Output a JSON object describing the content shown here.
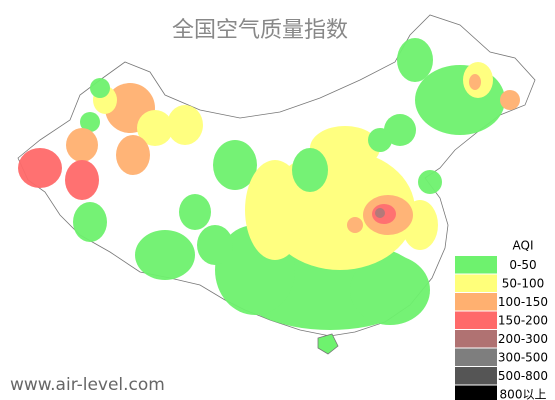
{
  "title": "全国空气质量指数",
  "watermark": "www.air-level.com",
  "legend": {
    "title": "AQI",
    "items": [
      {
        "label": "0-50",
        "color": "#6ef26e"
      },
      {
        "label": "50-100",
        "color": "#ffff7a"
      },
      {
        "label": "100-150",
        "color": "#ffb070"
      },
      {
        "label": "150-200",
        "color": "#ff6a6a"
      },
      {
        "label": "200-300",
        "color": "#b07272"
      },
      {
        "label": "300-500",
        "color": "#7e7e7e"
      },
      {
        "label": "500-800",
        "color": "#555555"
      },
      {
        "label": "800以上",
        "color": "#000000"
      }
    ]
  }
}
